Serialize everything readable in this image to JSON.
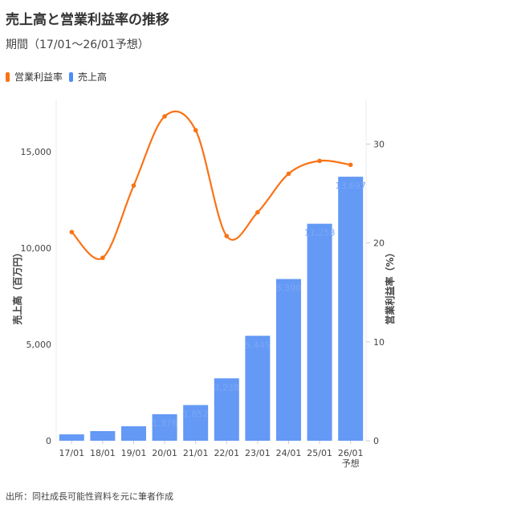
{
  "chart_data": {
    "type": "bar+line",
    "title": "売上高と営業利益率の推移",
    "subtitle": "期間（17/01〜26/01予想）",
    "categories": [
      "17/01",
      "18/01",
      "19/01",
      "20/01",
      "21/01",
      "22/01",
      "23/01",
      "24/01",
      "25/01",
      "26/01"
    ],
    "category_sublabels": [
      "",
      "",
      "",
      "",
      "",
      "",
      "",
      "",
      "",
      "予想"
    ],
    "series": [
      {
        "name": "営業利益率",
        "type": "line",
        "axis": "right",
        "color": "#F97316",
        "values": [
          21.1,
          18.5,
          25.8,
          32.8,
          31.4,
          20.7,
          23.1,
          27.0,
          28.3,
          27.9
        ]
      },
      {
        "name": "売上高",
        "type": "bar",
        "axis": "left",
        "color": "#6499F5",
        "values": [
          330,
          500,
          750,
          1376,
          1852,
          3238,
          5445,
          8390,
          11258,
          13697
        ],
        "labels": [
          "",
          "",
          "",
          "1,376",
          "1,852",
          "3,238",
          "5,445",
          "8,390",
          "11,258",
          "13,697"
        ]
      }
    ],
    "legend_order": [
      "営業利益率",
      "売上高"
    ],
    "legend_colors": [
      "#F97316",
      "#4C8DF6"
    ],
    "ylabel": "売上高（百万円）",
    "y2label": "営業利益率（%）",
    "ylim": [
      0,
      17700
    ],
    "y2lim": [
      0,
      34.5
    ],
    "yticks": [
      0,
      5000,
      10000,
      15000
    ],
    "ytick_labels": [
      "0",
      "5,000",
      "10,000",
      "15,000"
    ],
    "y2ticks": [
      0,
      10,
      20,
      30
    ],
    "y2tick_labels": [
      "0",
      "10",
      "20",
      "30"
    ],
    "legend_position": "top-left"
  },
  "footer": "出所：同社成長可能性資料を元に筆者作成"
}
